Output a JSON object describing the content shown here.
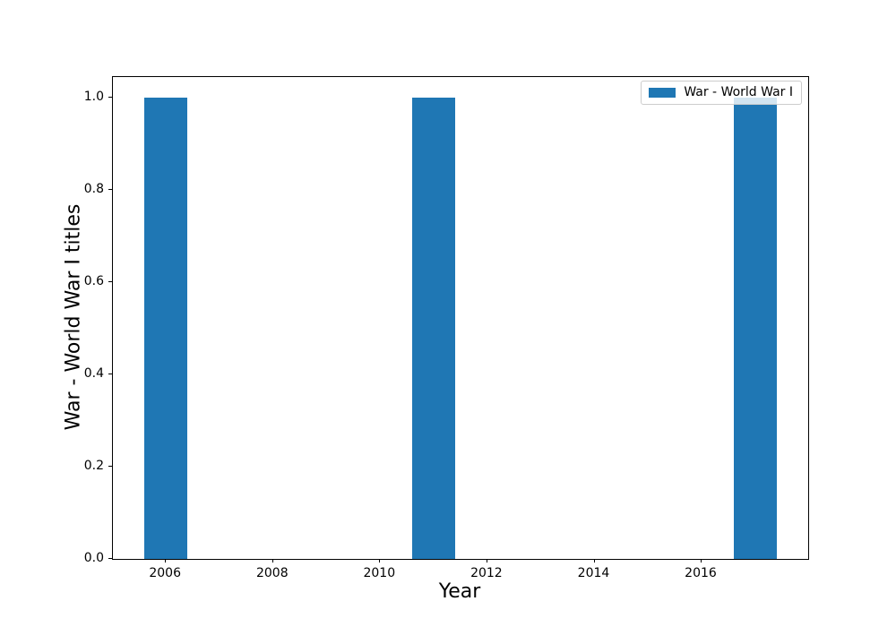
{
  "chart_data": {
    "type": "bar",
    "title": "",
    "xlabel": "Year",
    "ylabel": "War - World War I titles",
    "x": [
      2006,
      2011,
      2017
    ],
    "values": [
      1.0,
      1.0,
      1.0
    ],
    "bar_width": 0.8,
    "bar_color": "#1f77b4",
    "xlim": [
      2005.01,
      2017.99
    ],
    "ylim": [
      0,
      1.045
    ],
    "xtick_values": [
      2006,
      2008,
      2010,
      2012,
      2014,
      2016
    ],
    "xtick_labels": [
      "2006",
      "2008",
      "2010",
      "2012",
      "2014",
      "2016"
    ],
    "ytick_values": [
      0.0,
      0.2,
      0.4,
      0.6,
      0.8,
      1.0
    ],
    "ytick_labels": [
      "0.0",
      "0.2",
      "0.4",
      "0.6",
      "0.8",
      "1.0"
    ],
    "grid": false,
    "legend": {
      "position": "upper right",
      "label": "War - World War I",
      "swatch_color": "#1f77b4"
    },
    "colors": {
      "background": "#ffffff",
      "spine": "#000000",
      "text": "#000000",
      "legend_border": "#cccccc"
    }
  }
}
